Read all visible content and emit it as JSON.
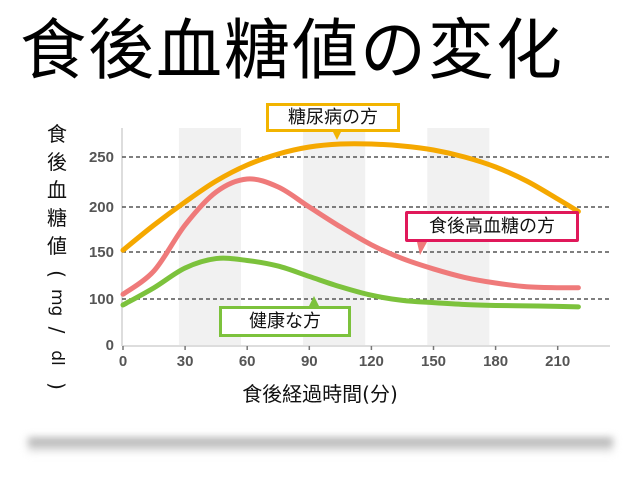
{
  "title": "食後血糖値の変化",
  "axes": {
    "ylabel_chars": [
      "食",
      "後",
      "血",
      "糖",
      "値",
      "(",
      "mg",
      "/",
      "dl",
      ")"
    ],
    "xlabel": "食後経過時間(分)",
    "yticks": [
      "250",
      "200",
      "150",
      "100",
      "0"
    ],
    "xticks": [
      "0",
      "30",
      "60",
      "90",
      "120",
      "150",
      "180",
      "210"
    ]
  },
  "callouts": {
    "diabetic": "糖尿病の方",
    "postprandial": "食後高血糖の方",
    "healthy": "健康な方"
  },
  "colors": {
    "diabetic": "#f5a800",
    "postprandial": "#ef7a7a",
    "healthy": "#7cc23c",
    "diabetic_border": "#f2b400",
    "postprandial_border": "#e0185a",
    "healthy_border": "#7cc23c",
    "grid": "#555555",
    "band": "#f1f1f1"
  },
  "chart_data": {
    "type": "line",
    "title": "食後血糖値の変化",
    "xlabel": "食後経過時間(分)",
    "ylabel": "食後血糖値(mg/dl)",
    "xlim": [
      0,
      240
    ],
    "ylim": [
      0,
      280
    ],
    "yticks": [
      0,
      100,
      150,
      200,
      250
    ],
    "xticks": [
      0,
      30,
      60,
      90,
      120,
      150,
      180,
      210
    ],
    "grid": "dashed horizontal at 100,150,200,250",
    "shaded_bands": [
      [
        30,
        60
      ],
      [
        90,
        120
      ],
      [
        150,
        180
      ]
    ],
    "x": [
      0,
      15,
      30,
      45,
      60,
      75,
      90,
      105,
      120,
      135,
      150,
      165,
      180,
      195,
      210,
      220
    ],
    "series": [
      {
        "name": "糖尿病の方",
        "values": [
          152,
          180,
          205,
          226,
          242,
          253,
          260,
          263,
          263,
          261,
          257,
          250,
          240,
          226,
          208,
          195
        ]
      },
      {
        "name": "食後高血糖の方",
        "values": [
          105,
          130,
          180,
          215,
          228,
          220,
          200,
          178,
          158,
          143,
          132,
          123,
          117,
          113,
          112,
          112
        ]
      },
      {
        "name": "健康な方",
        "values": [
          87,
          112,
          133,
          143,
          141,
          135,
          124,
          113,
          104,
          97,
          92,
          88,
          86,
          85,
          84,
          83
        ]
      }
    ],
    "annotations": [
      "糖尿病の方",
      "食後高血糖の方",
      "健康な方"
    ]
  }
}
